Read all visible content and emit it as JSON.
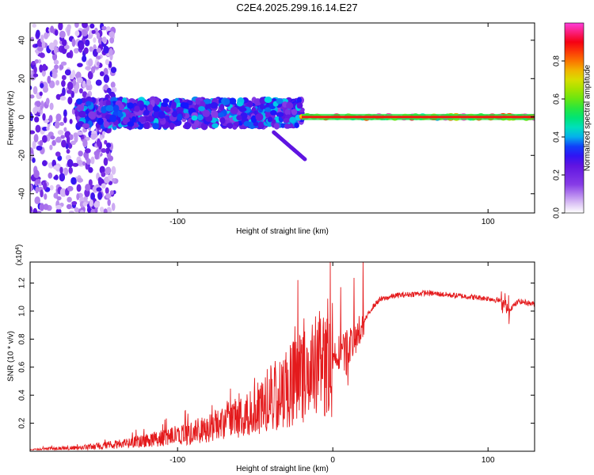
{
  "title": "C2E4.2025.299.16.14.E27",
  "colors": {
    "snr_line": "#e41a1c",
    "axis": "#000000"
  },
  "chart_data": [
    {
      "type": "heatmap",
      "name": "spectrogram",
      "xlabel": "Height of straight line (km)",
      "ylabel": "Frequency (Hz)",
      "xlim": [
        -195,
        130
      ],
      "ylim": [
        -50,
        49
      ],
      "xticks": [
        -100,
        100
      ],
      "xtick_labels": [
        "-100",
        "100"
      ],
      "yticks": [
        -40,
        -20,
        0,
        20,
        40
      ],
      "ytick_labels": [
        "-40",
        "-20",
        "0",
        "20",
        "40"
      ],
      "colorbar": {
        "label": "Normalized spectral amplitude",
        "range": [
          0,
          1
        ],
        "ticks": [
          0.0,
          0.2,
          0.4,
          0.6,
          0.8
        ],
        "tick_labels": [
          "0.0",
          "0.2",
          "0.4",
          "0.6",
          "0.8"
        ]
      },
      "features": [
        {
          "kind": "noise",
          "x_range": [
            -195,
            -140
          ],
          "freq_range": [
            -50,
            49
          ],
          "amplitude": 0.15
        },
        {
          "kind": "band",
          "x_range": [
            -165,
            -20
          ],
          "freq_center": 2,
          "freq_halfwidth": 7,
          "amplitude": 0.35
        },
        {
          "kind": "band",
          "x_range": [
            -20,
            130
          ],
          "freq_center": 0,
          "freq_halfwidth": 1,
          "amplitude": 0.95
        },
        {
          "kind": "streak",
          "x_range": [
            -38,
            -18
          ],
          "freq_range": [
            -8,
            -22
          ],
          "amplitude": 0.25
        }
      ]
    },
    {
      "type": "line",
      "name": "snr",
      "xlabel": "Height of straight line (km)",
      "ylabel": "SNR (10 * v/v)",
      "y_multiplier": "(x10",
      "y_multiplier_exp": "4",
      "y_multiplier_close": ")",
      "xlim": [
        -195,
        130
      ],
      "ylim": [
        0,
        1.35
      ],
      "xticks": [
        -100,
        0,
        100
      ],
      "xtick_labels": [
        "-100",
        "0",
        "100"
      ],
      "yticks": [
        0.2,
        0.4,
        0.6,
        0.8,
        1.0,
        1.2
      ],
      "ytick_labels": [
        "0.2",
        "0.4",
        "0.6",
        "0.8",
        "1.0",
        "1.2"
      ],
      "series": [
        {
          "name": "SNR",
          "x": [
            -195,
            -180,
            -160,
            -140,
            -120,
            -100,
            -90,
            -80,
            -70,
            -60,
            -50,
            -40,
            -30,
            -20,
            -10,
            -5,
            0,
            5,
            10,
            15,
            20,
            25,
            30,
            40,
            50,
            60,
            70,
            80,
            90,
            100,
            110,
            112,
            120,
            130
          ],
          "y": [
            0.01,
            0.02,
            0.03,
            0.05,
            0.08,
            0.12,
            0.14,
            0.18,
            0.22,
            0.28,
            0.33,
            0.4,
            0.48,
            0.55,
            0.6,
            0.65,
            0.68,
            0.72,
            0.75,
            0.8,
            0.92,
            1.02,
            1.08,
            1.11,
            1.12,
            1.13,
            1.12,
            1.11,
            1.1,
            1.09,
            1.07,
            1.0,
            1.07,
            1.05
          ]
        }
      ]
    }
  ]
}
